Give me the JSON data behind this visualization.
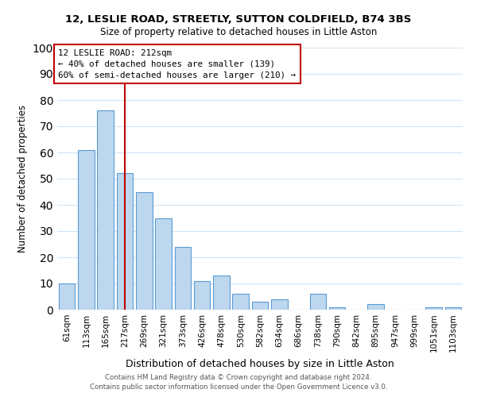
{
  "title_line1": "12, LESLIE ROAD, STREETLY, SUTTON COLDFIELD, B74 3BS",
  "title_line2": "Size of property relative to detached houses in Little Aston",
  "xlabel": "Distribution of detached houses by size in Little Aston",
  "ylabel": "Number of detached properties",
  "bar_labels": [
    "61sqm",
    "113sqm",
    "165sqm",
    "217sqm",
    "269sqm",
    "321sqm",
    "373sqm",
    "426sqm",
    "478sqm",
    "530sqm",
    "582sqm",
    "634sqm",
    "686sqm",
    "738sqm",
    "790sqm",
    "842sqm",
    "895sqm",
    "947sqm",
    "999sqm",
    "1051sqm",
    "1103sqm"
  ],
  "bar_values": [
    10,
    61,
    76,
    52,
    45,
    35,
    24,
    11,
    13,
    6,
    3,
    4,
    0,
    6,
    1,
    0,
    2,
    0,
    0,
    1,
    1
  ],
  "bar_color": "#bdd7ee",
  "bar_edge_color": "#5b9bd5",
  "vline_x": 3.0,
  "vline_color": "#c00000",
  "annotation_title": "12 LESLIE ROAD: 212sqm",
  "annotation_line1": "← 40% of detached houses are smaller (139)",
  "annotation_line2": "60% of semi-detached houses are larger (210) →",
  "annotation_box_color": "#ffffff",
  "annotation_box_edge": "#c00000",
  "footer_line1": "Contains HM Land Registry data © Crown copyright and database right 2024.",
  "footer_line2": "Contains public sector information licensed under the Open Government Licence v3.0.",
  "ylim": [
    0,
    100
  ],
  "yticks": [
    0,
    10,
    20,
    30,
    40,
    50,
    60,
    70,
    80,
    90,
    100
  ],
  "bg_color": "#ffffff",
  "grid_color": "#d0e4f5"
}
